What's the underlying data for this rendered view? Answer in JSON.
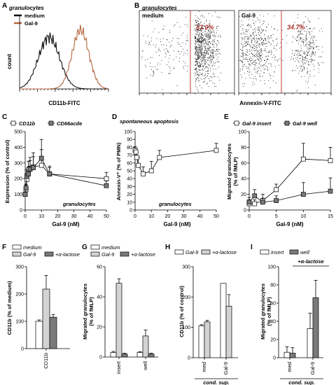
{
  "colors": {
    "medium": "#111111",
    "gal9": "#b5653c",
    "light": "#d3d3d3",
    "dark": "#7a7a7a",
    "red": "#c62828"
  },
  "panels": {
    "A": {
      "letter": "A",
      "subtitle": "granulocytes",
      "legend": [
        "medium",
        "Gal-9"
      ],
      "ylabel": "count",
      "xlabel": "CD11b-FITC"
    },
    "B": {
      "letter": "B",
      "subtitle": "granulocytes",
      "left_label": "medium",
      "right_label": "Gal-9",
      "left_pct": "83.0%",
      "right_pct": "34.7%",
      "xlabel": "Annexin-V-FITC"
    },
    "C": {
      "letter": "C",
      "legend": [
        "CD11b",
        "CD66acde"
      ],
      "ylabel": "Expression (% of control)",
      "xlabel": "Gal-9 (nM)",
      "note": "granulocytes",
      "yticks": [
        "0",
        "100",
        "200",
        "300",
        "400",
        "500"
      ],
      "xticks": [
        "0",
        "10",
        "20",
        "30",
        "40",
        "50"
      ]
    },
    "D": {
      "letter": "D",
      "title": "spontaneous apoptosis",
      "ylabel": "Annexin-V⁺ (% of PMN)",
      "xlabel": "Gal-9 (nM)",
      "note": "granulocytes",
      "yticks": [
        "0",
        "10",
        "20",
        "30",
        "40",
        "50",
        "60",
        "70",
        "80",
        "90",
        "100"
      ],
      "xticks": [
        "0",
        "10",
        "20",
        "30",
        "40",
        "50"
      ]
    },
    "E": {
      "letter": "E",
      "legend": [
        "Gal-9 insert",
        "Gal-9 well"
      ],
      "ylabel1": "Migrated granulocytes",
      "ylabel2": "(% of fMLP)",
      "xlabel": "Gal-9 (nM)",
      "yticks": [
        "0",
        "20",
        "40",
        "60",
        "80",
        "100"
      ],
      "xticks": [
        "0",
        "5",
        "10",
        "15"
      ]
    },
    "F": {
      "letter": "F",
      "legend": [
        "medium",
        "Gal-9",
        "+α-lactose"
      ],
      "ylabel": "CD11b (% of medium)",
      "xticks": [
        "CD11b"
      ],
      "yticks": [
        "0",
        "100",
        "200",
        "300"
      ]
    },
    "G": {
      "letter": "G",
      "legend": [
        "medium",
        "Gal-9",
        "+α-lactose"
      ],
      "ylabel1": "Migrated granulocytes",
      "ylabel2": "(% of fMLP)",
      "xticks": [
        "insert",
        "well"
      ],
      "yticks": [
        "0",
        "20",
        "40",
        "60"
      ]
    },
    "H": {
      "letter": "H",
      "legend": [
        "Gal-9",
        "+α-lactose"
      ],
      "ylabel": "CD11b (% of control)",
      "xticks": [
        "med",
        "Gal-9"
      ],
      "footer": "cond. sup.",
      "yticks": [
        "0",
        "100",
        "200",
        "300"
      ]
    },
    "I": {
      "letter": "I",
      "legend": [
        "insert",
        "well"
      ],
      "ylabel1": "Migrated granulocytes",
      "ylabel2": "(% of fMLP)",
      "xticks": [
        "med",
        "Gal-9"
      ],
      "footer": "cond. sup.",
      "bracket": "+α-lactose",
      "yticks": [
        "0",
        "20",
        "40",
        "60",
        "80",
        "100"
      ]
    }
  },
  "chart_data": [
    {
      "panel": "A",
      "type": "line",
      "title": "granulocytes",
      "xlabel": "CD11b-FITC",
      "ylabel": "count",
      "series": [
        {
          "name": "medium"
        },
        {
          "name": "Gal-9"
        }
      ]
    },
    {
      "panel": "B",
      "type": "scatter",
      "title": "granulocytes",
      "xlabel": "Annexin-V-FITC",
      "gates": [
        {
          "name": "medium",
          "percent": 83.0
        },
        {
          "name": "Gal-9",
          "percent": 34.7
        }
      ]
    },
    {
      "panel": "C",
      "type": "line",
      "xlabel": "Gal-9 (nM)",
      "ylabel": "Expression (% of control)",
      "xlim": [
        0,
        50
      ],
      "ylim": [
        0,
        500
      ],
      "series": [
        {
          "name": "CD11b",
          "x": [
            0,
            0.5,
            1,
            2,
            3,
            5,
            10,
            15,
            50
          ],
          "y": [
            100,
            130,
            195,
            255,
            265,
            275,
            285,
            230,
            200
          ],
          "err": [
            10,
            30,
            40,
            55,
            70,
            90,
            100,
            50,
            40
          ]
        },
        {
          "name": "CD66acde",
          "x": [
            0,
            0.5,
            1,
            2,
            3,
            5,
            10,
            15,
            50
          ],
          "y": [
            100,
            140,
            215,
            230,
            260,
            270,
            330,
            230,
            155
          ],
          "err": [
            10,
            25,
            40,
            45,
            55,
            70,
            120,
            40,
            30
          ]
        }
      ]
    },
    {
      "panel": "D",
      "type": "line",
      "title": "spontaneous apoptosis",
      "xlabel": "Gal-9 (nM)",
      "ylabel": "Annexin-V⁺ (% of PMN)",
      "xlim": [
        0,
        50
      ],
      "ylim": [
        0,
        100
      ],
      "series": [
        {
          "x": [
            0,
            0.5,
            1,
            2,
            5,
            10,
            15,
            50
          ],
          "y": [
            76,
            74,
            67,
            57,
            46,
            50,
            67,
            76
          ],
          "err": [
            5,
            5,
            6,
            10,
            9,
            12,
            9,
            9
          ]
        }
      ]
    },
    {
      "panel": "E",
      "type": "line",
      "xlabel": "Gal-9 (nM)",
      "ylabel": "Migrated granulocytes (% of fMLP)",
      "xlim": [
        0,
        15
      ],
      "ylim": [
        0,
        100
      ],
      "series": [
        {
          "name": "Gal-9 insert",
          "x": [
            0,
            1,
            2.5,
            5,
            10,
            15
          ],
          "y": [
            8,
            8,
            12,
            26,
            65,
            63
          ],
          "err": [
            5,
            5,
            8,
            7,
            20,
            17
          ]
        },
        {
          "name": "Gal-9 well",
          "x": [
            0,
            1,
            2.5,
            5,
            10,
            15
          ],
          "y": [
            10,
            18,
            10,
            12,
            20,
            24
          ],
          "err": [
            6,
            8,
            5,
            6,
            15,
            17
          ]
        }
      ]
    },
    {
      "panel": "F",
      "type": "bar",
      "categories": [
        "CD11b"
      ],
      "ylabel": "CD11b (% of medium)",
      "ylim": [
        0,
        300
      ],
      "series": [
        {
          "name": "medium",
          "values": [
            100
          ],
          "err": [
            5
          ]
        },
        {
          "name": "Gal-9",
          "values": [
            218
          ],
          "err": [
            50
          ]
        },
        {
          "name": "+α-lactose",
          "values": [
            115
          ],
          "err": [
            10
          ]
        }
      ]
    },
    {
      "panel": "G",
      "type": "bar",
      "categories": [
        "insert",
        "well"
      ],
      "ylabel": "Migrated granulocytes (% of fMLP)",
      "ylim": [
        0,
        60
      ],
      "series": [
        {
          "name": "medium",
          "values": [
            3,
            3
          ],
          "err": [
            0.7,
            0.5
          ]
        },
        {
          "name": "Gal-9",
          "values": [
            49,
            14
          ],
          "err": [
            3,
            4
          ]
        },
        {
          "name": "+α-lactose",
          "values": [
            2,
            2
          ],
          "err": [
            0.5,
            0.5
          ]
        }
      ]
    },
    {
      "panel": "H",
      "type": "bar",
      "categories": [
        "med",
        "Gal-9"
      ],
      "ylabel": "CD11b (% of control)",
      "ylim": [
        0,
        300
      ],
      "series": [
        {
          "name": "Gal-9",
          "values": [
            105,
            245
          ],
          "err": [
            4,
            0
          ]
        },
        {
          "name": "+α-lactose",
          "values": [
            118,
            170
          ],
          "err": [
            5,
            38
          ]
        }
      ]
    },
    {
      "panel": "I",
      "type": "bar",
      "categories": [
        "med",
        "Gal-9"
      ],
      "ylabel": "Migrated granulocytes (% of fMLP)",
      "ylim": [
        0,
        100
      ],
      "series": [
        {
          "name": "insert",
          "values": [
            6,
            32
          ],
          "err": [
            6,
            17
          ]
        },
        {
          "name": "well",
          "values": [
            5,
            66
          ],
          "err": [
            6,
            19
          ]
        }
      ]
    }
  ]
}
